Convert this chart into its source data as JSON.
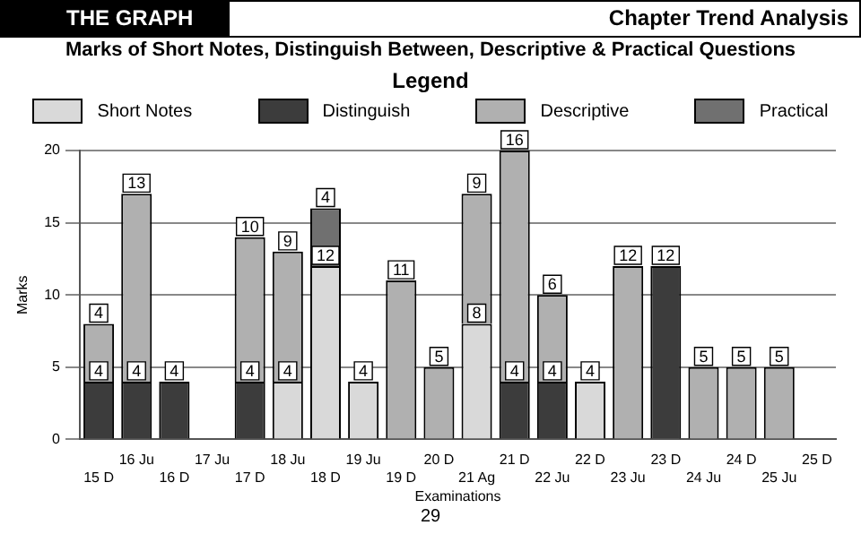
{
  "chart_data": {
    "type": "bar",
    "title": "Marks of Short Notes, Distinguish Between, Descriptive & Practical Questions",
    "legend_title": "Legend",
    "xlabel": "Examinations",
    "ylabel": "Marks",
    "annotations": [
      "THE GRAPH",
      "Chapter Trend Analysis",
      "29"
    ],
    "categories": [
      "15 D",
      "16 Ju",
      "16 D",
      "17 Ju",
      "17 D",
      "18 Ju",
      "18 D",
      "19 Ju",
      "19 D",
      "20 D",
      "21 Ag",
      "21 D",
      "22 Ju",
      "22 D",
      "23 Ju",
      "23 D",
      "24 Ju",
      "24 D",
      "25 Ju",
      "25 D"
    ],
    "stacked": true,
    "data_labels": true,
    "grid": "y",
    "legend": "top",
    "ylim": [
      0,
      20
    ],
    "yticks": [
      0,
      5,
      10,
      15,
      20
    ],
    "series": [
      {
        "name": "Short Notes",
        "color": "#d9d9d9",
        "values": [
          null,
          null,
          null,
          null,
          null,
          4,
          12,
          4,
          null,
          null,
          8,
          null,
          null,
          4,
          null,
          null,
          null,
          null,
          null,
          null
        ]
      },
      {
        "name": "Distinguish",
        "color": "#3c3c3c",
        "values": [
          4,
          4,
          4,
          null,
          4,
          null,
          null,
          null,
          null,
          null,
          null,
          4,
          4,
          null,
          null,
          12,
          null,
          null,
          null,
          null
        ]
      },
      {
        "name": "Descriptive",
        "color": "#b0b0b0",
        "values": [
          4,
          13,
          null,
          null,
          10,
          9,
          null,
          null,
          11,
          5,
          9,
          16,
          6,
          null,
          12,
          null,
          5,
          5,
          5,
          null
        ]
      },
      {
        "name": "Practical",
        "color": "#707070",
        "values": [
          null,
          null,
          null,
          null,
          null,
          null,
          4,
          null,
          null,
          null,
          null,
          null,
          null,
          null,
          null,
          null,
          null,
          null,
          null,
          null
        ]
      }
    ]
  }
}
